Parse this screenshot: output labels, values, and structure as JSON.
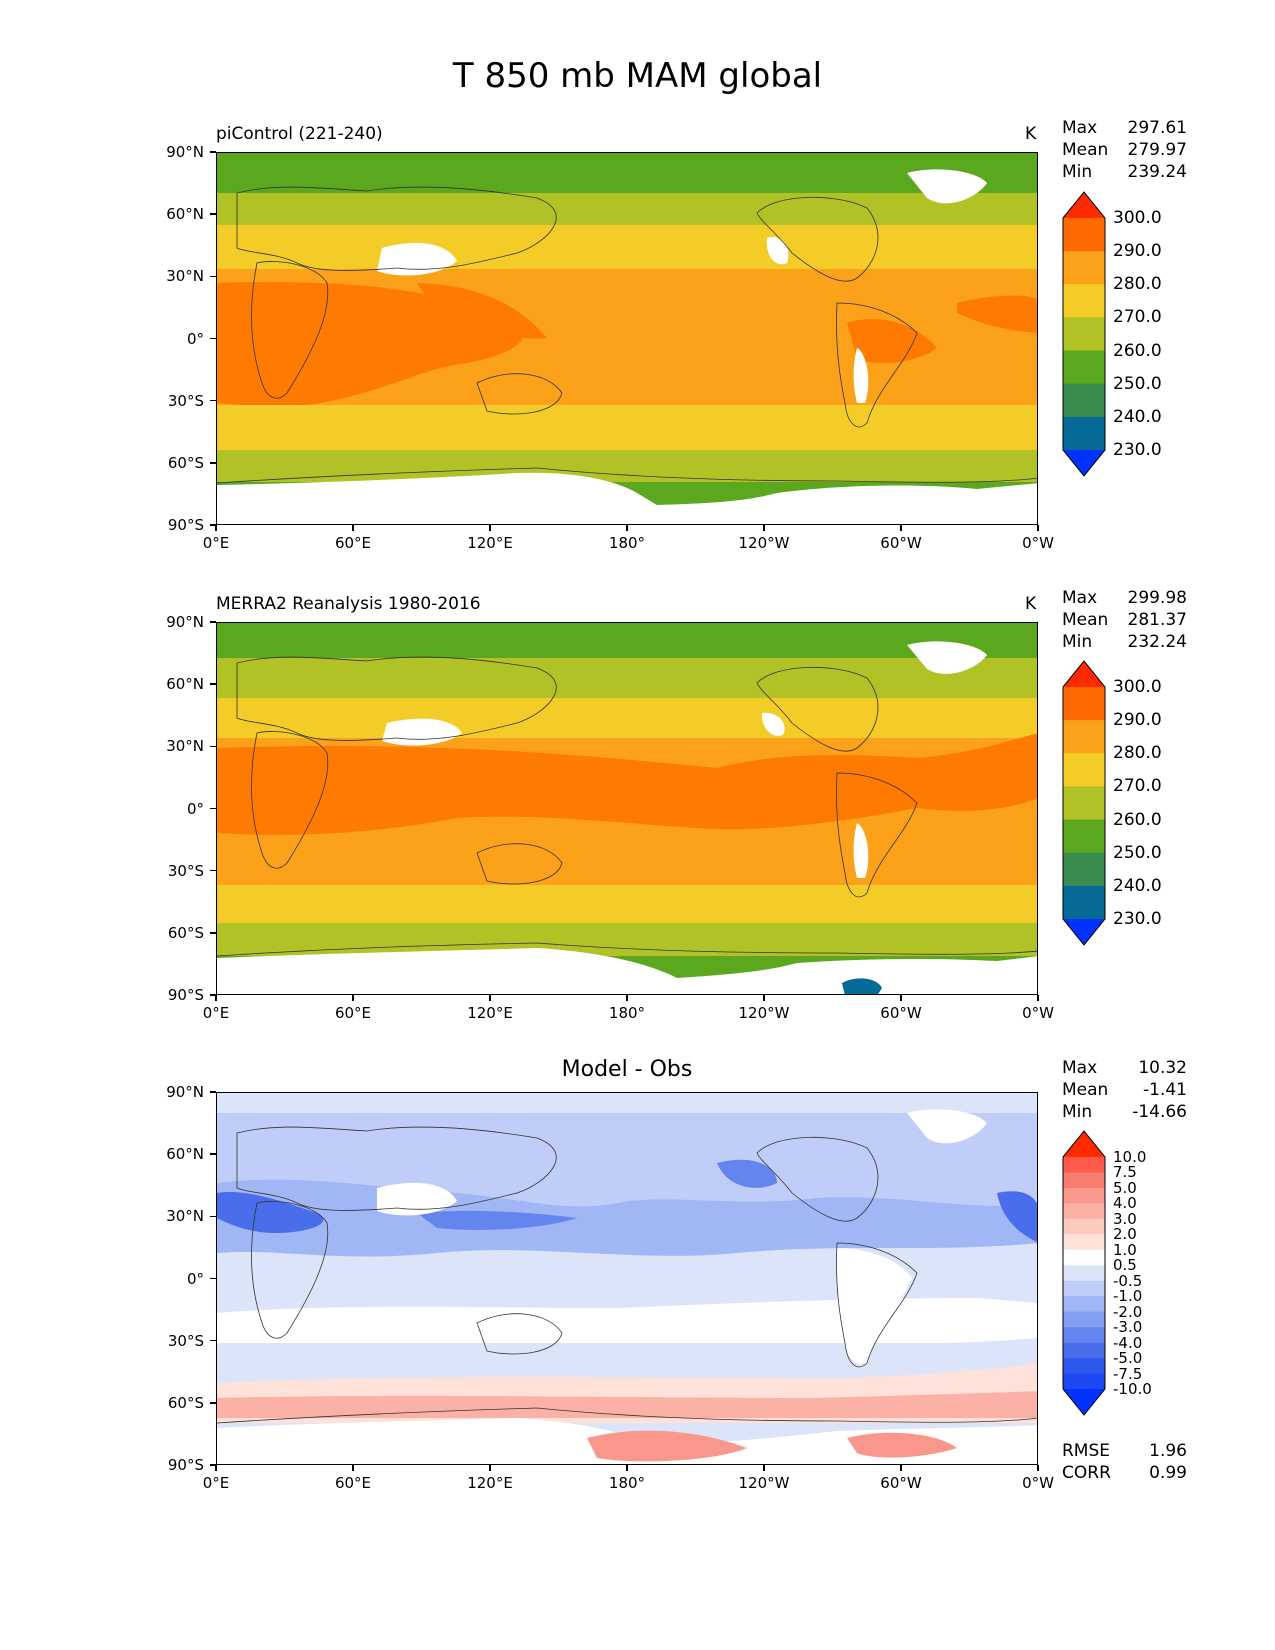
{
  "title": "T 850 mb MAM global",
  "axes": {
    "y_ticks": [
      "90°N",
      "60°N",
      "30°N",
      "0°",
      "30°S",
      "60°S",
      "90°S"
    ],
    "x_ticks": [
      "0°E",
      "60°E",
      "120°E",
      "180°",
      "120°W",
      "60°W",
      "0°W"
    ]
  },
  "panels": [
    {
      "title": "piControl (221-240)",
      "unit": "K",
      "stats": {
        "max_label": "Max",
        "max": "297.61",
        "mean_label": "Mean",
        "mean": "279.97",
        "min_label": "Min",
        "min": "239.24"
      }
    },
    {
      "title": "MERRA2 Reanalysis 1980-2016",
      "unit": "K",
      "stats": {
        "max_label": "Max",
        "max": "299.98",
        "mean_label": "Mean",
        "mean": "281.37",
        "min_label": "Min",
        "min": "232.24"
      }
    },
    {
      "title": "Model - Obs",
      "stats": {
        "max_label": "Max",
        "max": "10.32",
        "mean_label": "Mean",
        "mean": "-1.41",
        "min_label": "Min",
        "min": "-14.66"
      },
      "metrics": {
        "rmse_label": "RMSE",
        "rmse": "1.96",
        "corr_label": "CORR",
        "corr": "0.99"
      }
    }
  ],
  "colorbar_abs": {
    "colors": [
      "#ff2a00",
      "#ff6a00",
      "#fba11a",
      "#f3cc28",
      "#b0c225",
      "#5ba71d",
      "#3a8c50",
      "#056b96",
      "#0033ff"
    ],
    "labels": [
      "300.0",
      "290.0",
      "280.0",
      "270.0",
      "260.0",
      "250.0",
      "240.0",
      "230.0"
    ]
  },
  "colorbar_diff": {
    "colors": [
      "#ff2a00",
      "#ff5a4b",
      "#f87b70",
      "#f9978c",
      "#fbb1a6",
      "#fdcabf",
      "#fee2da",
      "#ffffff",
      "#dce4fa",
      "#bfcdf8",
      "#a0b6f5",
      "#839df2",
      "#6585ee",
      "#4a6eeb",
      "#2f58ee",
      "#1d49f5",
      "#0033ff"
    ],
    "labels": [
      "10.0",
      "7.5",
      "5.0",
      "4.0",
      "3.0",
      "2.0",
      "1.0",
      "0.5",
      "-0.5",
      "-1.0",
      "-2.0",
      "-3.0",
      "-4.0",
      "-5.0",
      "-7.5",
      "-10.0"
    ]
  }
}
